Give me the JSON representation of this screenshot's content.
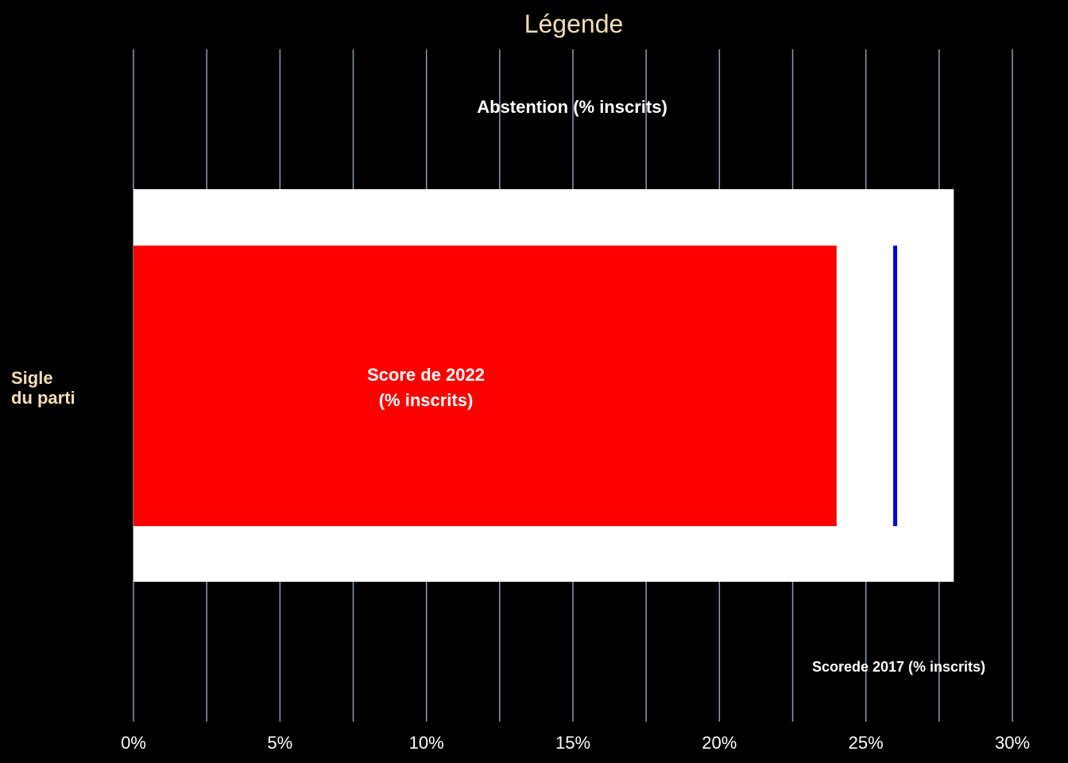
{
  "colors": {
    "background": "#000000",
    "title": "#f5deb3",
    "category_label": "#f5deb3",
    "annotation_text": "#ffffff",
    "grid": "#8c9bb0",
    "abstention_bar": "#ffffff",
    "score_2022_bar": "#ff0000",
    "score_2017_marker": "#0000e6"
  },
  "chart_data": {
    "type": "bar",
    "orientation": "horizontal",
    "title": "Légende",
    "category_label": [
      "Sigle",
      "du parti"
    ],
    "xlim": [
      0,
      30
    ],
    "grid": true,
    "x_ticks": [
      {
        "value": 0,
        "label": "0%"
      },
      {
        "value": 5,
        "label": "5%"
      },
      {
        "value": 10,
        "label": "10%"
      },
      {
        "value": 15,
        "label": "15%"
      },
      {
        "value": 20,
        "label": "20%"
      },
      {
        "value": 25,
        "label": "25%"
      },
      {
        "value": 30,
        "label": "30%"
      }
    ],
    "grid_values": [
      0,
      2.5,
      5,
      7.5,
      10,
      12.5,
      15,
      17.5,
      20,
      22.5,
      25,
      27.5,
      30
    ],
    "series": [
      {
        "key": "abstention",
        "name": "Abstention (% inscrits)",
        "value": 28
      },
      {
        "key": "score_2022",
        "name_lines": [
          "Score de 2022",
          "(% inscrits)"
        ],
        "value": 24
      },
      {
        "key": "score_2017",
        "name": "Scorede 2017 (% inscrits)",
        "value": 26
      }
    ]
  }
}
